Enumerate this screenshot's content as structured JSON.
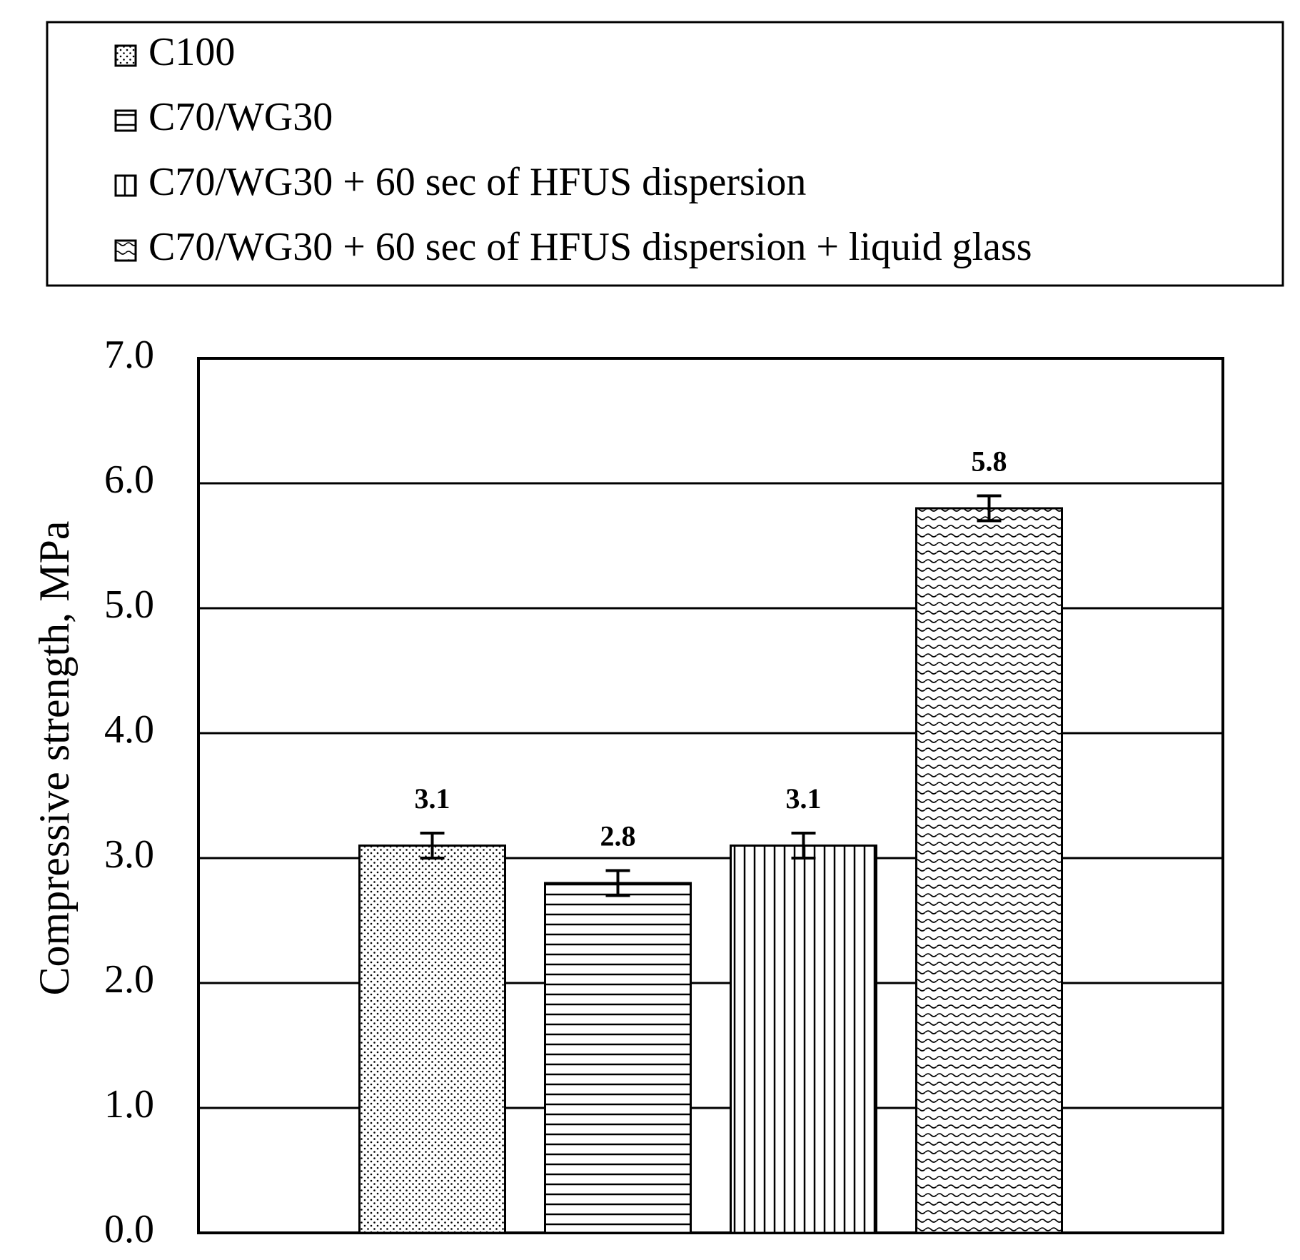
{
  "chart_data": {
    "type": "bar",
    "y_label": "Compressive strength, MPa",
    "categories": [
      null
    ],
    "series": [
      {
        "name": "C100",
        "color": "#000000",
        "hatch": "dots",
        "values": [
          3.1
        ],
        "errors": [
          0.1
        ]
      },
      {
        "name": "C70/WG30",
        "color": "#000000",
        "hatch": "horizontal",
        "values": [
          2.8
        ],
        "errors": [
          0.1
        ]
      },
      {
        "name": "C70/WG30 + 60 sec of HFUS dispersion",
        "color": "#000000",
        "hatch": "vertical",
        "values": [
          3.1
        ],
        "errors": [
          0.1
        ]
      },
      {
        "name": "C70/WG30 + 60 sec of HFUS dispersion + liquid glass",
        "color": "#000000",
        "hatch": "waves",
        "values": [
          5.8
        ],
        "errors": [
          0.1
        ]
      }
    ],
    "ylim": [
      0,
      7
    ],
    "yticks": [
      {
        "value": 0,
        "label": "0.0"
      },
      {
        "value": 1,
        "label": "1.0"
      },
      {
        "value": 2,
        "label": "2.0"
      },
      {
        "value": 3,
        "label": "3.0"
      },
      {
        "value": 4,
        "label": "4.0"
      },
      {
        "value": 5,
        "label": "5.0"
      },
      {
        "value": 6,
        "label": "6.0"
      },
      {
        "value": 7,
        "label": "7.0"
      }
    ],
    "grid": true,
    "legend": "top"
  }
}
